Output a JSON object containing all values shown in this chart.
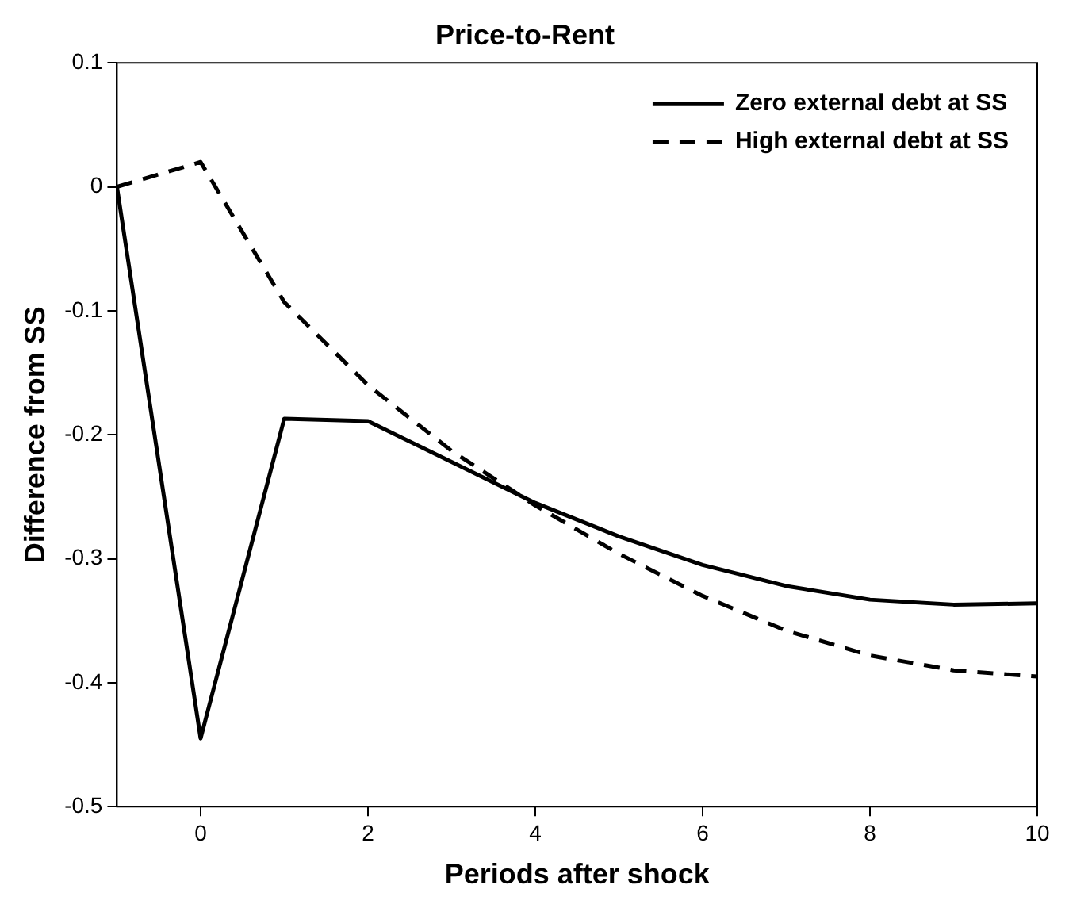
{
  "chart_data": {
    "type": "line",
    "title": "Price-to-Rent",
    "xlabel": "Periods after shock",
    "ylabel": "Difference from SS",
    "x": [
      -1,
      0,
      1,
      2,
      3,
      4,
      5,
      6,
      7,
      8,
      9,
      10
    ],
    "series": [
      {
        "name": "Zero external debt at SS",
        "color": "#000000",
        "line_style": "solid",
        "values": [
          0,
          -0.445,
          -0.187,
          -0.189,
          -0.222,
          -0.255,
          -0.282,
          -0.305,
          -0.322,
          -0.333,
          -0.337,
          -0.336
        ]
      },
      {
        "name": "High external debt at SS",
        "color": "#000000",
        "line_style": "dashed",
        "values": [
          0,
          0.02,
          -0.093,
          -0.16,
          -0.213,
          -0.257,
          -0.296,
          -0.33,
          -0.358,
          -0.378,
          -0.39,
          -0.395
        ]
      }
    ],
    "xlim": [
      -1,
      10
    ],
    "xticks": [
      0,
      2,
      4,
      6,
      8,
      10
    ],
    "ylim": [
      -0.5,
      0.1
    ],
    "yticks": [
      -0.5,
      -0.4,
      -0.3,
      -0.2,
      -0.1,
      0,
      0.1
    ],
    "grid": false,
    "legend": "top right",
    "marker": "none"
  }
}
